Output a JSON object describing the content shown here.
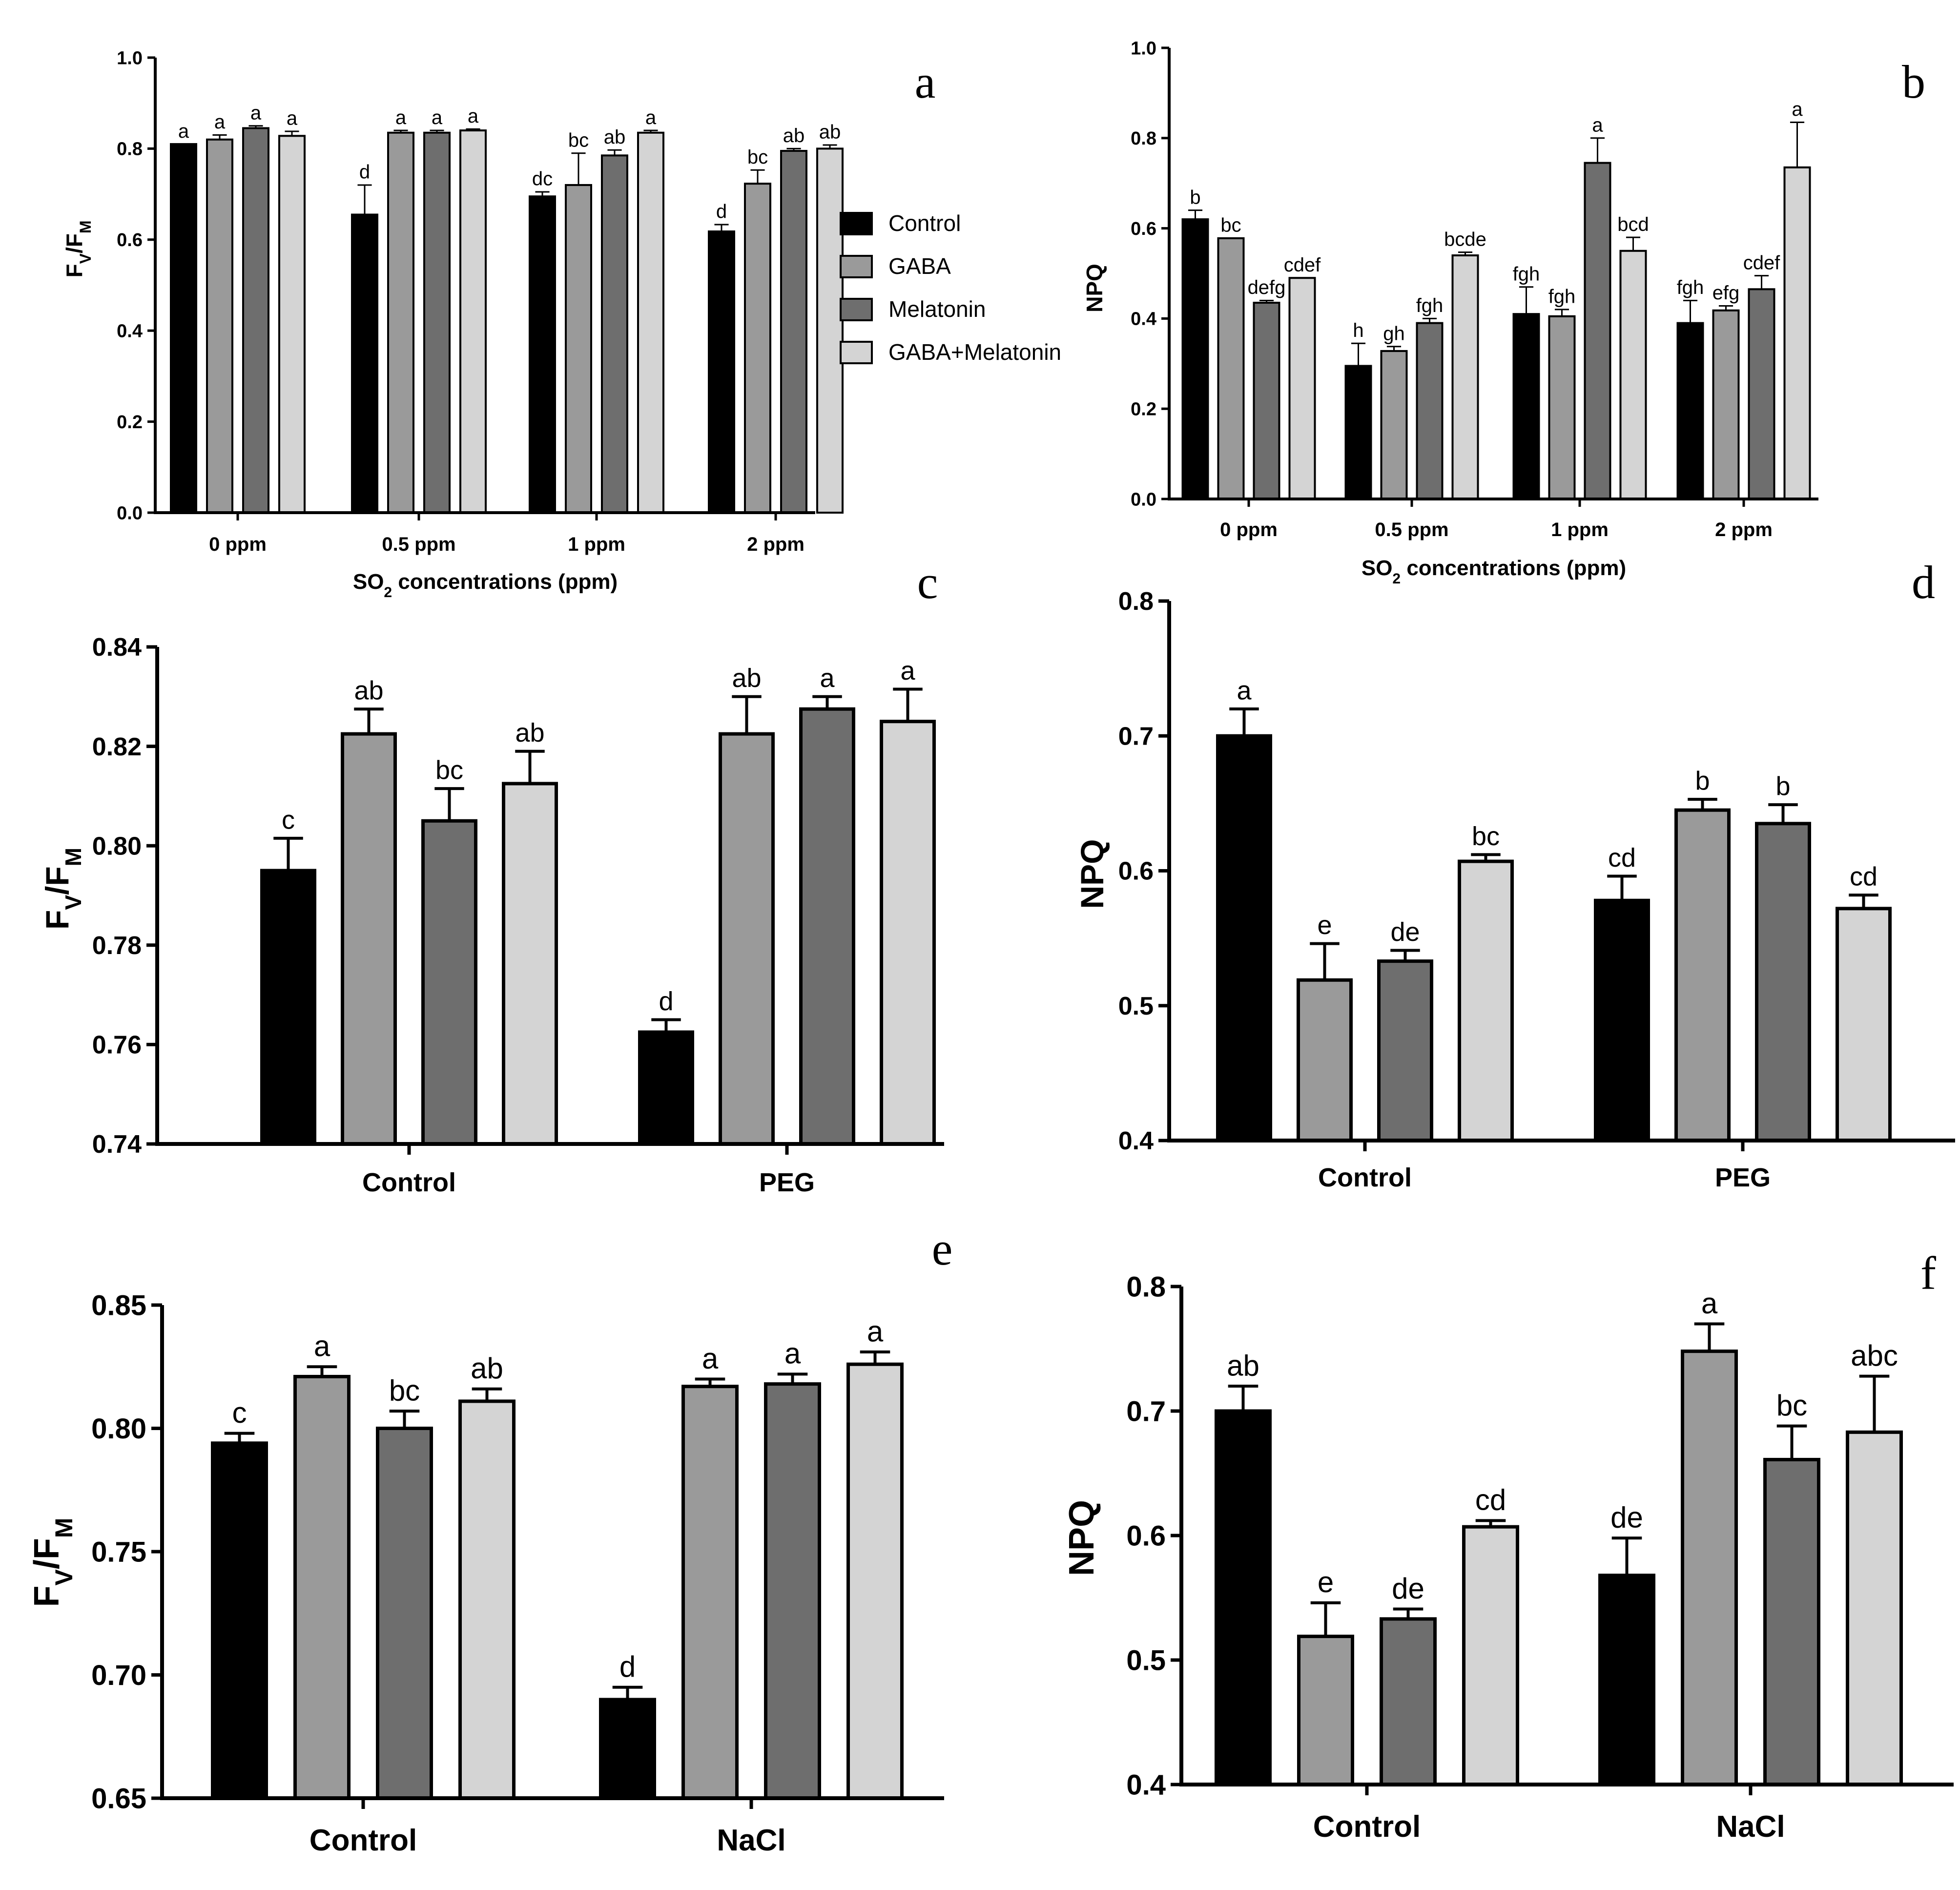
{
  "colors": {
    "control": "#000000",
    "gaba": "#9a9a9a",
    "melatonin": "#6e6e6e",
    "gaba_melatonin": "#d4d4d4"
  },
  "legend": {
    "entries": [
      "Control",
      "GABA",
      "Melatonin",
      "GABA+Melatonin"
    ],
    "position": "right of panel a"
  },
  "chart_data": [
    {
      "type": "bar",
      "panel": "a",
      "title": "",
      "xlabel": "SO2 concentrations (ppm)",
      "xlabel_main": "SO",
      "xlabel_sub": "2",
      "xlabel_rest": " concentrations (ppm)",
      "ylabel_main": "F",
      "ylabel_sub1": "V",
      "ylabel_mid": "/F",
      "ylabel_sub2": "M",
      "ylim": [
        0,
        1.0
      ],
      "yticks": [
        "0.0",
        "0.2",
        "0.4",
        "0.6",
        "0.8",
        "1.0"
      ],
      "categories": [
        "0 ppm",
        "0.5 ppm",
        "1 ppm",
        "2 ppm"
      ],
      "series": [
        {
          "name": "Control",
          "values": [
            0.81,
            0.655,
            0.695,
            0.618
          ],
          "errors": [
            0.0,
            0.065,
            0.01,
            0.015
          ],
          "labels": [
            "a",
            "d",
            "dc",
            "d"
          ]
        },
        {
          "name": "GABA",
          "values": [
            0.82,
            0.835,
            0.72,
            0.723
          ],
          "errors": [
            0.01,
            0.005,
            0.07,
            0.03
          ],
          "labels": [
            "a",
            "a",
            "bc",
            "bc"
          ]
        },
        {
          "name": "Melatonin",
          "values": [
            0.845,
            0.835,
            0.785,
            0.795
          ],
          "errors": [
            0.005,
            0.005,
            0.012,
            0.005
          ],
          "labels": [
            "a",
            "a",
            "ab",
            "ab"
          ]
        },
        {
          "name": "GABA+Melatonin",
          "values": [
            0.828,
            0.84,
            0.835,
            0.8
          ],
          "errors": [
            0.01,
            0.003,
            0.005,
            0.008
          ],
          "labels": [
            "a",
            "a",
            "a",
            "ab"
          ]
        }
      ]
    },
    {
      "type": "bar",
      "panel": "b",
      "title": "",
      "xlabel": "SO2 concentrations (ppm)",
      "xlabel_main": "SO",
      "xlabel_sub": "2",
      "xlabel_rest": " concentrations (ppm)",
      "ylabel": "NPQ",
      "ylim": [
        0,
        1.0
      ],
      "yticks": [
        "0.0",
        "0.2",
        "0.4",
        "0.6",
        "0.8",
        "1.0"
      ],
      "categories": [
        "0 ppm",
        "0.5 ppm",
        "1 ppm",
        "2 ppm"
      ],
      "series": [
        {
          "name": "Control",
          "values": [
            0.62,
            0.295,
            0.41,
            0.39
          ],
          "errors": [
            0.02,
            0.05,
            0.06,
            0.05
          ],
          "labels": [
            "b",
            "h",
            "fgh",
            "fgh"
          ]
        },
        {
          "name": "GABA",
          "values": [
            0.578,
            0.328,
            0.405,
            0.418
          ],
          "errors": [
            0.0,
            0.01,
            0.015,
            0.01
          ],
          "labels": [
            "bc",
            "gh",
            "fgh",
            "efg"
          ]
        },
        {
          "name": "Melatonin",
          "values": [
            0.435,
            0.39,
            0.745,
            0.465
          ],
          "errors": [
            0.005,
            0.01,
            0.055,
            0.03
          ],
          "labels": [
            "defg",
            "fgh",
            "a",
            "cdef"
          ]
        },
        {
          "name": "GABA+Melatonin",
          "values": [
            0.49,
            0.54,
            0.55,
            0.735
          ],
          "errors": [
            0.0,
            0.007,
            0.03,
            0.1
          ],
          "labels": [
            "cdef",
            "bcde",
            "bcd",
            "a"
          ]
        }
      ]
    },
    {
      "type": "bar",
      "panel": "c",
      "title": "",
      "xlabel": "",
      "ylabel_main": "F",
      "ylabel_sub1": "V",
      "ylabel_mid": "/F",
      "ylabel_sub2": "M",
      "ylim": [
        0.74,
        0.84
      ],
      "yticks": [
        "0.74",
        "0.76",
        "0.78",
        "0.80",
        "0.82",
        "0.84"
      ],
      "categories": [
        "Control",
        "PEG"
      ],
      "series": [
        {
          "name": "Control",
          "values": [
            0.795,
            0.7625
          ],
          "errors": [
            0.0065,
            0.0025
          ],
          "labels": [
            "c",
            "d"
          ]
        },
        {
          "name": "GABA",
          "values": [
            0.8225,
            0.8225
          ],
          "errors": [
            0.005,
            0.0075
          ],
          "labels": [
            "ab",
            "ab"
          ]
        },
        {
          "name": "Melatonin",
          "values": [
            0.805,
            0.8275
          ],
          "errors": [
            0.0065,
            0.0025
          ],
          "labels": [
            "bc",
            "a"
          ]
        },
        {
          "name": "GABA+Melatonin",
          "values": [
            0.8125,
            0.825
          ],
          "errors": [
            0.0065,
            0.0065
          ],
          "labels": [
            "ab",
            "a"
          ]
        }
      ]
    },
    {
      "type": "bar",
      "panel": "d",
      "title": "",
      "xlabel": "",
      "ylabel": "NPQ",
      "ylim": [
        0.4,
        0.8
      ],
      "yticks": [
        "0.4",
        "0.5",
        "0.6",
        "0.7",
        "0.8"
      ],
      "categories": [
        "Control",
        "PEG"
      ],
      "series": [
        {
          "name": "Control",
          "values": [
            0.7,
            0.578
          ],
          "errors": [
            0.02,
            0.018
          ],
          "labels": [
            "a",
            "cd"
          ]
        },
        {
          "name": "GABA",
          "values": [
            0.519,
            0.645
          ],
          "errors": [
            0.027,
            0.008
          ],
          "labels": [
            "e",
            "b"
          ]
        },
        {
          "name": "Melatonin",
          "values": [
            0.533,
            0.635
          ],
          "errors": [
            0.008,
            0.014
          ],
          "labels": [
            "de",
            "b"
          ]
        },
        {
          "name": "GABA+Melatonin",
          "values": [
            0.607,
            0.572
          ],
          "errors": [
            0.005,
            0.01
          ],
          "labels": [
            "bc",
            "cd"
          ]
        }
      ]
    },
    {
      "type": "bar",
      "panel": "e",
      "title": "",
      "xlabel": "",
      "ylabel_main": "F",
      "ylabel_sub1": "V",
      "ylabel_mid": "/F",
      "ylabel_sub2": "M",
      "ylim": [
        0.65,
        0.85
      ],
      "yticks": [
        "0.65",
        "0.70",
        "0.75",
        "0.80",
        "0.85"
      ],
      "categories": [
        "Control",
        "NaCl"
      ],
      "series": [
        {
          "name": "Control",
          "values": [
            0.794,
            0.69
          ],
          "errors": [
            0.004,
            0.005
          ],
          "labels": [
            "c",
            "d"
          ]
        },
        {
          "name": "GABA",
          "values": [
            0.821,
            0.817
          ],
          "errors": [
            0.004,
            0.003
          ],
          "labels": [
            "a",
            "a"
          ]
        },
        {
          "name": "Melatonin",
          "values": [
            0.8,
            0.818
          ],
          "errors": [
            0.007,
            0.004
          ],
          "labels": [
            "bc",
            "a"
          ]
        },
        {
          "name": "GABA+Melatonin",
          "values": [
            0.811,
            0.826
          ],
          "errors": [
            0.005,
            0.005
          ],
          "labels": [
            "ab",
            "a"
          ]
        }
      ]
    },
    {
      "type": "bar",
      "panel": "f",
      "title": "",
      "xlabel": "",
      "ylabel": "NPQ",
      "ylim": [
        0.4,
        0.8
      ],
      "yticks": [
        "0.4",
        "0.5",
        "0.6",
        "0.7",
        "0.8"
      ],
      "categories": [
        "Control",
        "NaCl"
      ],
      "series": [
        {
          "name": "Control",
          "values": [
            0.7,
            0.568
          ],
          "errors": [
            0.02,
            0.03
          ],
          "labels": [
            "ab",
            "de"
          ]
        },
        {
          "name": "GABA",
          "values": [
            0.519,
            0.748
          ],
          "errors": [
            0.027,
            0.022
          ],
          "labels": [
            "e",
            "a"
          ]
        },
        {
          "name": "Melatonin",
          "values": [
            0.533,
            0.661
          ],
          "errors": [
            0.008,
            0.027
          ],
          "labels": [
            "de",
            "bc"
          ]
        },
        {
          "name": "GABA+Melatonin",
          "values": [
            0.607,
            0.683
          ],
          "errors": [
            0.005,
            0.045
          ],
          "labels": [
            "cd",
            "abc"
          ]
        }
      ]
    }
  ]
}
